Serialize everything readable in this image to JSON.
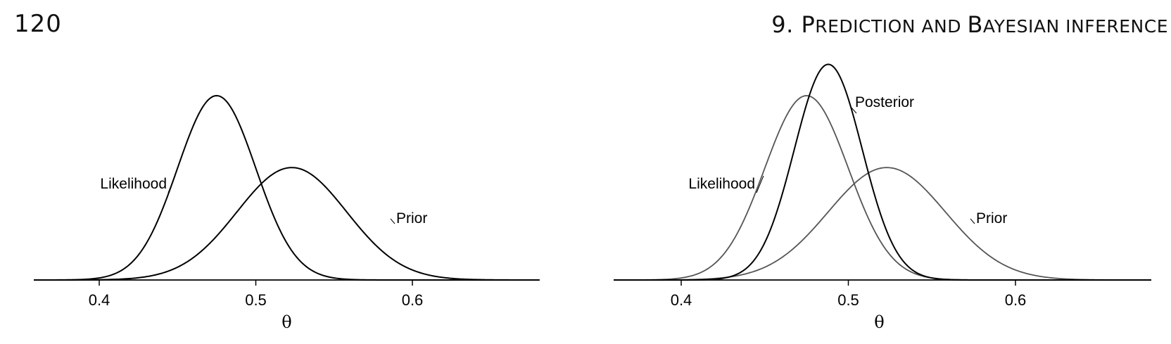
{
  "page_header": {
    "page_number": "120",
    "chapter_number": "9.",
    "chapter_title_parts": [
      {
        "text": "P",
        "small": false
      },
      {
        "text": "REDICTION AND ",
        "small": true
      },
      {
        "text": "B",
        "small": false
      },
      {
        "text": "AYESIAN INFERENCE",
        "small": true
      }
    ]
  },
  "chart_data": [
    {
      "type": "line",
      "xlabel": "θ",
      "ylabel": "",
      "xlim": [
        0.36,
        0.683
      ],
      "xticks": [
        0.4,
        0.5,
        0.6
      ],
      "xtick_labels": [
        "0.4",
        "0.5",
        "0.6"
      ],
      "grid": false,
      "y_axis_shown": false,
      "series": [
        {
          "name": "Likelihood",
          "distribution": "normal",
          "mean": 0.475,
          "sd": 0.025,
          "peak_height": 1.0,
          "color": "#000000"
        },
        {
          "name": "Prior",
          "distribution": "normal",
          "mean": 0.523,
          "sd": 0.035,
          "peak_height": 0.61,
          "color": "#000000"
        }
      ]
    },
    {
      "type": "line",
      "xlabel": "θ",
      "ylabel": "",
      "xlim": [
        0.36,
        0.683
      ],
      "xticks": [
        0.4,
        0.5,
        0.6
      ],
      "xtick_labels": [
        "0.4",
        "0.5",
        "0.6"
      ],
      "grid": false,
      "y_axis_shown": false,
      "series": [
        {
          "name": "Likelihood",
          "distribution": "normal",
          "mean": 0.475,
          "sd": 0.025,
          "peak_height": 1.0,
          "color": "#555555"
        },
        {
          "name": "Prior",
          "distribution": "normal",
          "mean": 0.523,
          "sd": 0.035,
          "peak_height": 0.61,
          "color": "#555555"
        },
        {
          "name": "Posterior",
          "distribution": "normal",
          "mean": 0.488,
          "sd": 0.0203,
          "peak_height": 1.17,
          "color": "#000000"
        }
      ]
    }
  ]
}
